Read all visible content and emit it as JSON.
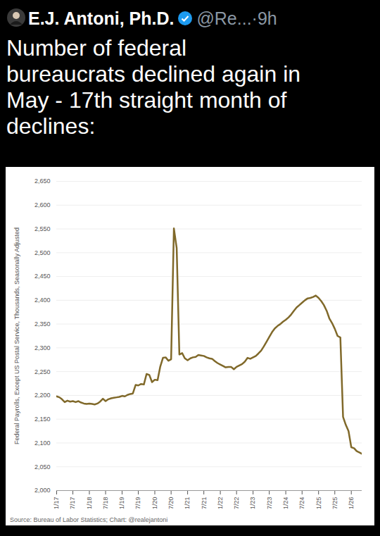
{
  "tweet": {
    "author": "E.J. Antoni, Ph.D.",
    "meta": "@Re...·9h",
    "text": "Number of federal bureaucrats declined again in May - 17th straight month of declines:"
  },
  "chart_data": {
    "type": "line",
    "y_label": "Federal Payrolls, Except US Postal Service, Thousands, Seasonally Adjusted",
    "source": "Source: Bureau of Labor Statistics; Chart: @realejantoni",
    "color": "#80692a",
    "grid": true,
    "x": [
      "2017-01",
      "2017-02",
      "2017-03",
      "2017-04",
      "2017-05",
      "2017-06",
      "2017-07",
      "2017-08",
      "2017-09",
      "2017-10",
      "2017-11",
      "2017-12",
      "2018-01",
      "2018-02",
      "2018-03",
      "2018-04",
      "2018-05",
      "2018-06",
      "2018-07",
      "2018-08",
      "2018-09",
      "2018-10",
      "2018-11",
      "2018-12",
      "2019-01",
      "2019-02",
      "2019-03",
      "2019-04",
      "2019-05",
      "2019-06",
      "2019-07",
      "2019-08",
      "2019-09",
      "2019-10",
      "2019-11",
      "2019-12",
      "2020-01",
      "2020-02",
      "2020-03",
      "2020-04",
      "2020-05",
      "2020-06",
      "2020-07",
      "2020-08",
      "2020-09",
      "2020-10",
      "2020-11",
      "2020-12",
      "2021-01",
      "2021-02",
      "2021-03",
      "2021-04",
      "2021-05",
      "2021-06",
      "2021-07",
      "2021-08",
      "2021-09",
      "2021-10",
      "2021-11",
      "2021-12",
      "2022-01",
      "2022-02",
      "2022-03",
      "2022-04",
      "2022-05",
      "2022-06",
      "2022-07",
      "2022-08",
      "2022-09",
      "2022-10",
      "2022-11",
      "2022-12",
      "2023-01",
      "2023-02",
      "2023-03",
      "2023-04",
      "2023-05",
      "2023-06",
      "2023-07",
      "2023-08",
      "2023-09",
      "2023-10",
      "2023-11",
      "2023-12",
      "2024-01",
      "2024-02",
      "2024-03",
      "2024-04",
      "2024-05",
      "2024-06",
      "2024-07",
      "2024-08",
      "2024-09",
      "2024-10",
      "2024-11",
      "2024-12",
      "2025-01",
      "2025-02",
      "2025-03",
      "2025-04",
      "2025-05",
      "2025-06",
      "2025-07",
      "2025-08",
      "2025-09",
      "2025-10",
      "2025-11",
      "2025-12",
      "2026-01",
      "2026-02",
      "2026-03",
      "2026-04",
      "2026-05"
    ],
    "values": [
      2198,
      2196,
      2192,
      2186,
      2189,
      2187,
      2188,
      2186,
      2188,
      2185,
      2183,
      2182,
      2183,
      2182,
      2181,
      2183,
      2187,
      2193,
      2188,
      2192,
      2194,
      2195,
      2196,
      2197,
      2199,
      2198,
      2201,
      2203,
      2204,
      2222,
      2221,
      2224,
      2223,
      2245,
      2243,
      2228,
      2233,
      2232,
      2260,
      2279,
      2280,
      2273,
      2276,
      2551,
      2510,
      2286,
      2289,
      2278,
      2274,
      2278,
      2280,
      2281,
      2285,
      2284,
      2283,
      2280,
      2278,
      2277,
      2272,
      2268,
      2265,
      2262,
      2259,
      2260,
      2260,
      2255,
      2260,
      2263,
      2266,
      2271,
      2279,
      2277,
      2280,
      2283,
      2288,
      2294,
      2303,
      2313,
      2323,
      2333,
      2341,
      2346,
      2350,
      2355,
      2359,
      2364,
      2370,
      2378,
      2385,
      2390,
      2395,
      2400,
      2404,
      2405,
      2407,
      2410,
      2405,
      2398,
      2390,
      2378,
      2362,
      2352,
      2340,
      2325,
      2322,
      2155,
      2138,
      2125,
      2091,
      2089,
      2083,
      2080,
      2077
    ],
    "xlim": [
      "2017-01",
      "2026-05"
    ],
    "xticks": [
      {
        "value": "2017-01",
        "label": "1/17"
      },
      {
        "value": "2017-07",
        "label": "7/17"
      },
      {
        "value": "2018-01",
        "label": "1/18"
      },
      {
        "value": "2018-07",
        "label": "7/18"
      },
      {
        "value": "2019-01",
        "label": "1/19"
      },
      {
        "value": "2019-07",
        "label": "7/19"
      },
      {
        "value": "2020-01",
        "label": "1/20"
      },
      {
        "value": "2020-07",
        "label": "7/20"
      },
      {
        "value": "2021-01",
        "label": "1/21"
      },
      {
        "value": "2021-07",
        "label": "7/21"
      },
      {
        "value": "2022-01",
        "label": "1/22"
      },
      {
        "value": "2022-07",
        "label": "7/22"
      },
      {
        "value": "2023-01",
        "label": "1/23"
      },
      {
        "value": "2023-07",
        "label": "7/23"
      },
      {
        "value": "2024-01",
        "label": "1/24"
      },
      {
        "value": "2024-07",
        "label": "7/24"
      },
      {
        "value": "2025-01",
        "label": "1/25"
      },
      {
        "value": "2025-07",
        "label": "7/25"
      },
      {
        "value": "2026-01",
        "label": "1/26"
      }
    ],
    "ylim": [
      2000,
      2650
    ],
    "yticks": [
      {
        "value": 2000,
        "label": "2,000"
      },
      {
        "value": 2050,
        "label": "2,050"
      },
      {
        "value": 2100,
        "label": "2,100"
      },
      {
        "value": 2150,
        "label": "2,150"
      },
      {
        "value": 2200,
        "label": "2,200"
      },
      {
        "value": 2250,
        "label": "2,250"
      },
      {
        "value": 2300,
        "label": "2,300"
      },
      {
        "value": 2350,
        "label": "2,350"
      },
      {
        "value": 2400,
        "label": "2,400"
      },
      {
        "value": 2450,
        "label": "2,450"
      },
      {
        "value": 2500,
        "label": "2,500"
      },
      {
        "value": 2550,
        "label": "2,550"
      },
      {
        "value": 2600,
        "label": "2,600"
      },
      {
        "value": 2650,
        "label": "2,650"
      }
    ]
  }
}
